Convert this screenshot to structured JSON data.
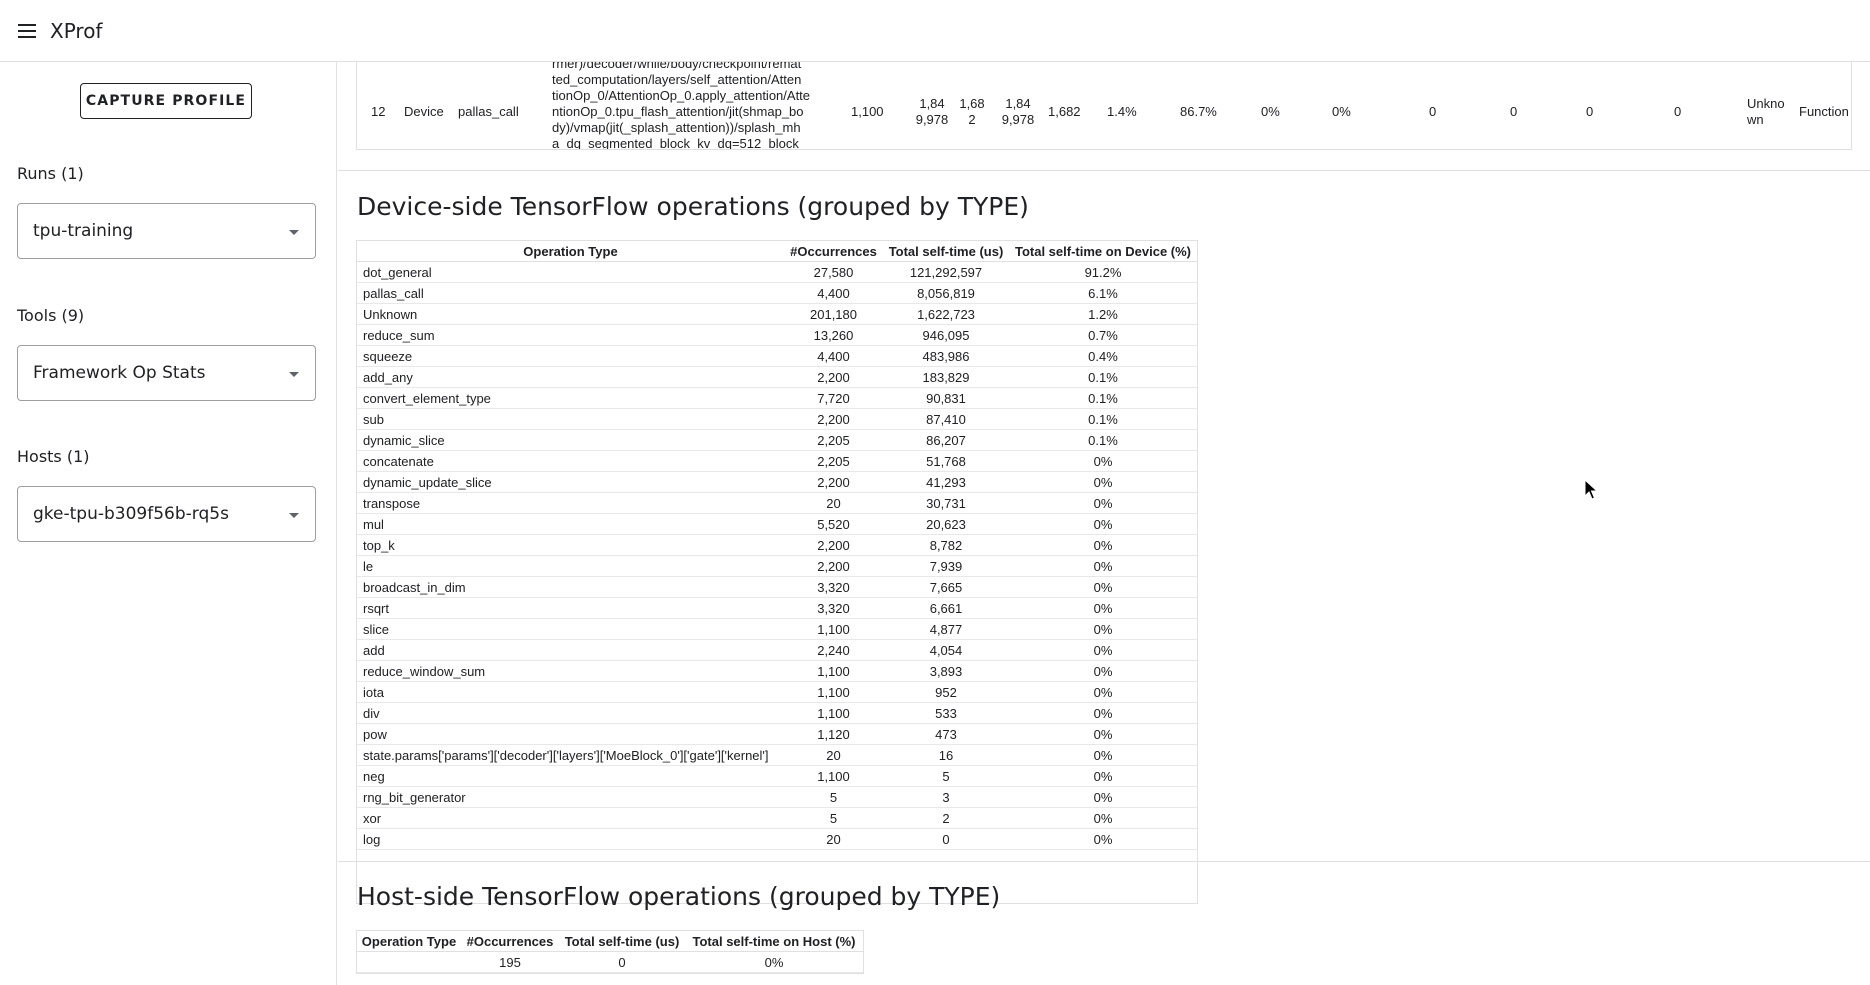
{
  "app": {
    "title": "XProf"
  },
  "sidebar": {
    "capture_label": "CAPTURE PROFILE",
    "runs_label": "Runs (1)",
    "runs_value": "tpu-training",
    "tools_label": "Tools (9)",
    "tools_value": "Framework Op Stats",
    "hosts_label": "Hosts (1)",
    "hosts_value": "gke-tpu-b309f56b-rq5s"
  },
  "op_row": {
    "rank": "12",
    "host_or_device": "Device",
    "type": "pallas_call",
    "operation_lines": [
      "rmer)/decoder/while/body/checkpoint/remat",
      "ted_computation/layers/self_attention/Atten",
      "tionOp_0/AttentionOp_0.apply_attention/Atte",
      "ntionOp_0.tpu_flash_attention/jit(shmap_bo",
      "dy)/vmap(jit(_splash_attention))/splash_mh",
      "a_dq_segmented_block_kv_dq=512_block"
    ],
    "occurrences": "1,100",
    "total_time_lines": [
      "1,84",
      "9,978"
    ],
    "avg_time_lines": [
      "1,68",
      "2"
    ],
    "total_self_time_lines": [
      "1,84",
      "9,978"
    ],
    "avg_self_time": "1,682",
    "self_time_pct": "1.4%",
    "cumulative_pct": "86.7%",
    "pct_a": "0%",
    "pct_b": "0%",
    "val_a": "0",
    "val_b": "0",
    "val_c": "0",
    "val_d": "0",
    "bound_by_lines": [
      "Unkno",
      "wn"
    ],
    "category": "Function"
  },
  "device_section": {
    "title": "Device-side TensorFlow operations (grouped by TYPE)",
    "headers": [
      "Operation Type",
      "#Occurrences",
      "Total self-time (us)",
      "Total self-time on Device (%)"
    ],
    "rows": [
      [
        "dot_general",
        "27,580",
        "121,292,597",
        "91.2%"
      ],
      [
        "pallas_call",
        "4,400",
        "8,056,819",
        "6.1%"
      ],
      [
        "Unknown",
        "201,180",
        "1,622,723",
        "1.2%"
      ],
      [
        "reduce_sum",
        "13,260",
        "946,095",
        "0.7%"
      ],
      [
        "squeeze",
        "4,400",
        "483,986",
        "0.4%"
      ],
      [
        "add_any",
        "2,200",
        "183,829",
        "0.1%"
      ],
      [
        "convert_element_type",
        "7,720",
        "90,831",
        "0.1%"
      ],
      [
        "sub",
        "2,200",
        "87,410",
        "0.1%"
      ],
      [
        "dynamic_slice",
        "2,205",
        "86,207",
        "0.1%"
      ],
      [
        "concatenate",
        "2,205",
        "51,768",
        "0%"
      ],
      [
        "dynamic_update_slice",
        "2,200",
        "41,293",
        "0%"
      ],
      [
        "transpose",
        "20",
        "30,731",
        "0%"
      ],
      [
        "mul",
        "5,520",
        "20,623",
        "0%"
      ],
      [
        "top_k",
        "2,200",
        "8,782",
        "0%"
      ],
      [
        "le",
        "2,200",
        "7,939",
        "0%"
      ],
      [
        "broadcast_in_dim",
        "3,320",
        "7,665",
        "0%"
      ],
      [
        "rsqrt",
        "3,320",
        "6,661",
        "0%"
      ],
      [
        "slice",
        "1,100",
        "4,877",
        "0%"
      ],
      [
        "add",
        "2,240",
        "4,054",
        "0%"
      ],
      [
        "reduce_window_sum",
        "1,100",
        "3,893",
        "0%"
      ],
      [
        "iota",
        "1,100",
        "952",
        "0%"
      ],
      [
        "div",
        "1,100",
        "533",
        "0%"
      ],
      [
        "pow",
        "1,120",
        "473",
        "0%"
      ],
      [
        "state.params['params']['decoder']['layers']['MoeBlock_0']['gate']['kernel']",
        "20",
        "16",
        "0%"
      ],
      [
        "neg",
        "1,100",
        "5",
        "0%"
      ],
      [
        "rng_bit_generator",
        "5",
        "3",
        "0%"
      ],
      [
        "xor",
        "5",
        "2",
        "0%"
      ],
      [
        "log",
        "20",
        "0",
        "0%"
      ]
    ]
  },
  "host_section": {
    "title": "Host-side TensorFlow operations (grouped by TYPE)",
    "headers": [
      "Operation Type",
      "#Occurrences",
      "Total self-time (us)",
      "Total self-time on Host (%)"
    ],
    "rows": [
      [
        "",
        "195",
        "0",
        "0%"
      ]
    ]
  }
}
